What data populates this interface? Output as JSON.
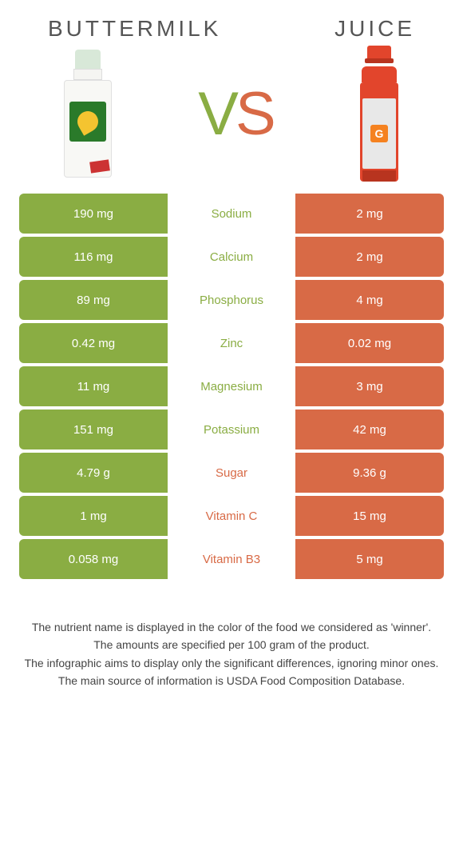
{
  "titles": {
    "left": "BUTTERMILK",
    "right": "JUICE"
  },
  "vs": {
    "v": "V",
    "s": "S"
  },
  "colors": {
    "green": "#8aad43",
    "orange": "#d86a46"
  },
  "rows": [
    {
      "left": "190 mg",
      "label": "Sodium",
      "right": "2 mg",
      "winner": "left"
    },
    {
      "left": "116 mg",
      "label": "Calcium",
      "right": "2 mg",
      "winner": "left"
    },
    {
      "left": "89 mg",
      "label": "Phosphorus",
      "right": "4 mg",
      "winner": "left"
    },
    {
      "left": "0.42 mg",
      "label": "Zinc",
      "right": "0.02 mg",
      "winner": "left"
    },
    {
      "left": "11 mg",
      "label": "Magnesium",
      "right": "3 mg",
      "winner": "left"
    },
    {
      "left": "151 mg",
      "label": "Potassium",
      "right": "42 mg",
      "winner": "left"
    },
    {
      "left": "4.79 g",
      "label": "Sugar",
      "right": "9.36 g",
      "winner": "right"
    },
    {
      "left": "1 mg",
      "label": "Vitamin C",
      "right": "15 mg",
      "winner": "right"
    },
    {
      "left": "0.058 mg",
      "label": "Vitamin B3",
      "right": "5 mg",
      "winner": "right"
    }
  ],
  "footer": [
    "The nutrient name is displayed in the color of the food we considered as 'winner'.",
    "The amounts are specified per 100 gram of the product.",
    "The infographic aims to display only the significant differences, ignoring minor ones.",
    "The main source of information is USDA Food Composition Database."
  ]
}
